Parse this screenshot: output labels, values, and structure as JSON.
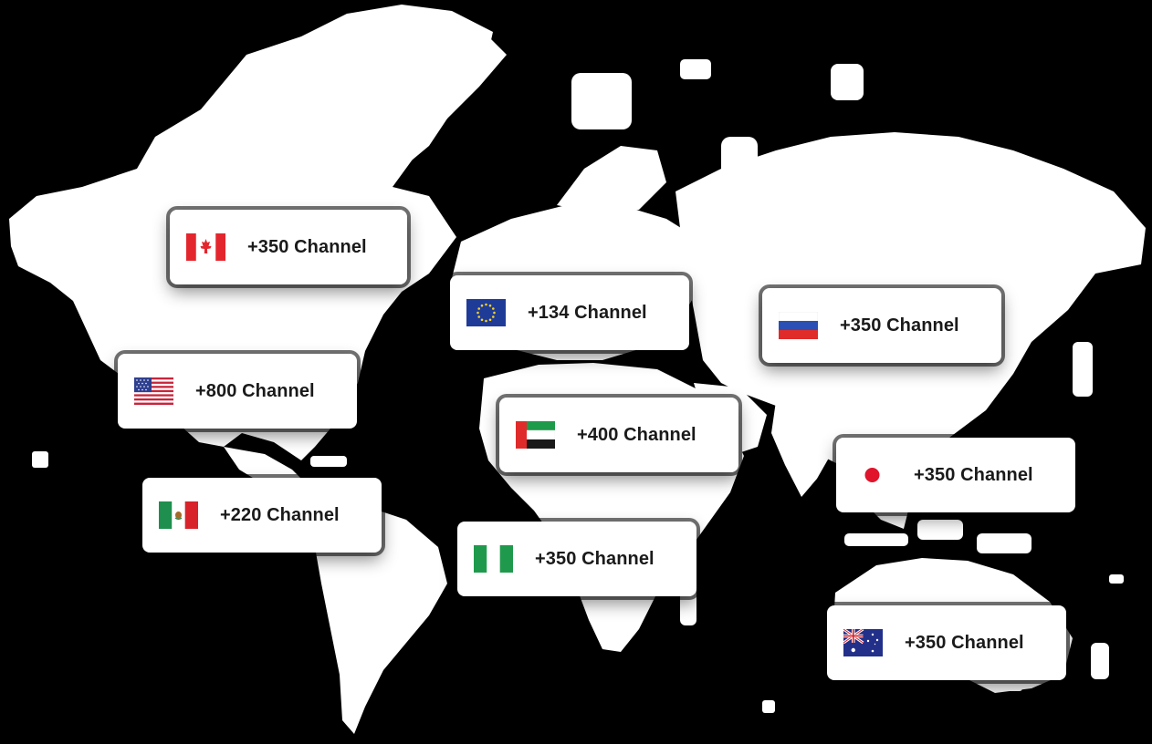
{
  "palette": {
    "background": "#000000",
    "land": "#ffffff",
    "card": "#ffffff",
    "text": "#1a1a1a"
  },
  "map": {
    "style": "dotted-world-map",
    "markers": [
      {
        "country": "Canada",
        "flag_icon": "canada-flag-icon",
        "label": "+350 Channel"
      },
      {
        "country": "European Union",
        "flag_icon": "eu-flag-icon",
        "label": "+134 Channel"
      },
      {
        "country": "Russia",
        "flag_icon": "russia-flag-icon",
        "label": "+350 Channel"
      },
      {
        "country": "United States",
        "flag_icon": "usa-flag-icon",
        "label": "+800 Channel"
      },
      {
        "country": "United Arab Emirates",
        "flag_icon": "uae-flag-icon",
        "label": "+400 Channel"
      },
      {
        "country": "Japan",
        "flag_icon": "japan-flag-icon",
        "label": "+350 Channel"
      },
      {
        "country": "Mexico",
        "flag_icon": "mexico-flag-icon",
        "label": "+220 Channel"
      },
      {
        "country": "Nigeria",
        "flag_icon": "nigeria-flag-icon",
        "label": "+350 Channel"
      },
      {
        "country": "Australia",
        "flag_icon": "australia-flag-icon",
        "label": "+350 Channel"
      }
    ]
  }
}
